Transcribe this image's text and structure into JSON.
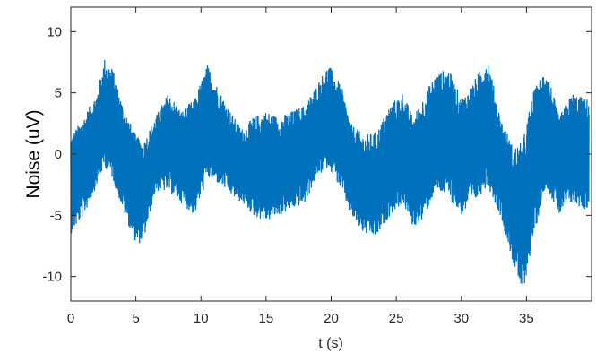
{
  "chart_data": {
    "type": "line",
    "title": "",
    "xlabel": "t (s)",
    "ylabel": "Noise (uV)",
    "xlim": [
      0,
      40
    ],
    "ylim": [
      -12,
      12
    ],
    "x_ticks": [
      0,
      5,
      10,
      15,
      20,
      25,
      30,
      35
    ],
    "y_ticks": [
      -10,
      -5,
      0,
      5,
      10
    ],
    "grid": false,
    "series_color": "#0072BD",
    "envelope": {
      "t": [
        0,
        1,
        2,
        2.6,
        3.2,
        4,
        5,
        5.6,
        6.5,
        7.5,
        8.5,
        9.5,
        10.5,
        11.5,
        12.5,
        13.2,
        14,
        15,
        16,
        17,
        18,
        18.8,
        19.8,
        20.8,
        21.5,
        22.5,
        23.5,
        24.5,
        25.5,
        26.3,
        27,
        28,
        29,
        30,
        31,
        32,
        33,
        34,
        34.7,
        35.5,
        36.5,
        37.5,
        38.5,
        39.5
      ],
      "upper": [
        1.5,
        3.0,
        5.0,
        7.8,
        7.0,
        4.0,
        1.5,
        1.0,
        3.0,
        5.0,
        3.5,
        4.5,
        7.3,
        5.0,
        3.0,
        2.0,
        3.0,
        3.5,
        3.0,
        3.5,
        4.0,
        5.5,
        7.3,
        5.5,
        2.5,
        1.5,
        1.8,
        4.0,
        5.0,
        3.0,
        4.5,
        6.5,
        7.0,
        4.5,
        6.0,
        8.0,
        3.0,
        0.5,
        1.0,
        5.0,
        7.2,
        3.0,
        5.0,
        4.5
      ],
      "lower": [
        -6.5,
        -5.0,
        -2.5,
        -1.0,
        -2.0,
        -4.5,
        -7.5,
        -7.0,
        -3.0,
        -3.0,
        -4.0,
        -5.0,
        -2.0,
        -2.5,
        -3.5,
        -4.0,
        -5.0,
        -5.5,
        -5.0,
        -4.5,
        -4.0,
        -2.0,
        -1.0,
        -3.0,
        -5.0,
        -6.5,
        -6.8,
        -5.0,
        -4.0,
        -6.0,
        -5.5,
        -3.0,
        -3.5,
        -5.0,
        -4.0,
        -2.5,
        -5.0,
        -9.0,
        -11.5,
        -7.0,
        -2.5,
        -5.0,
        -4.0,
        -4.5
      ]
    }
  }
}
